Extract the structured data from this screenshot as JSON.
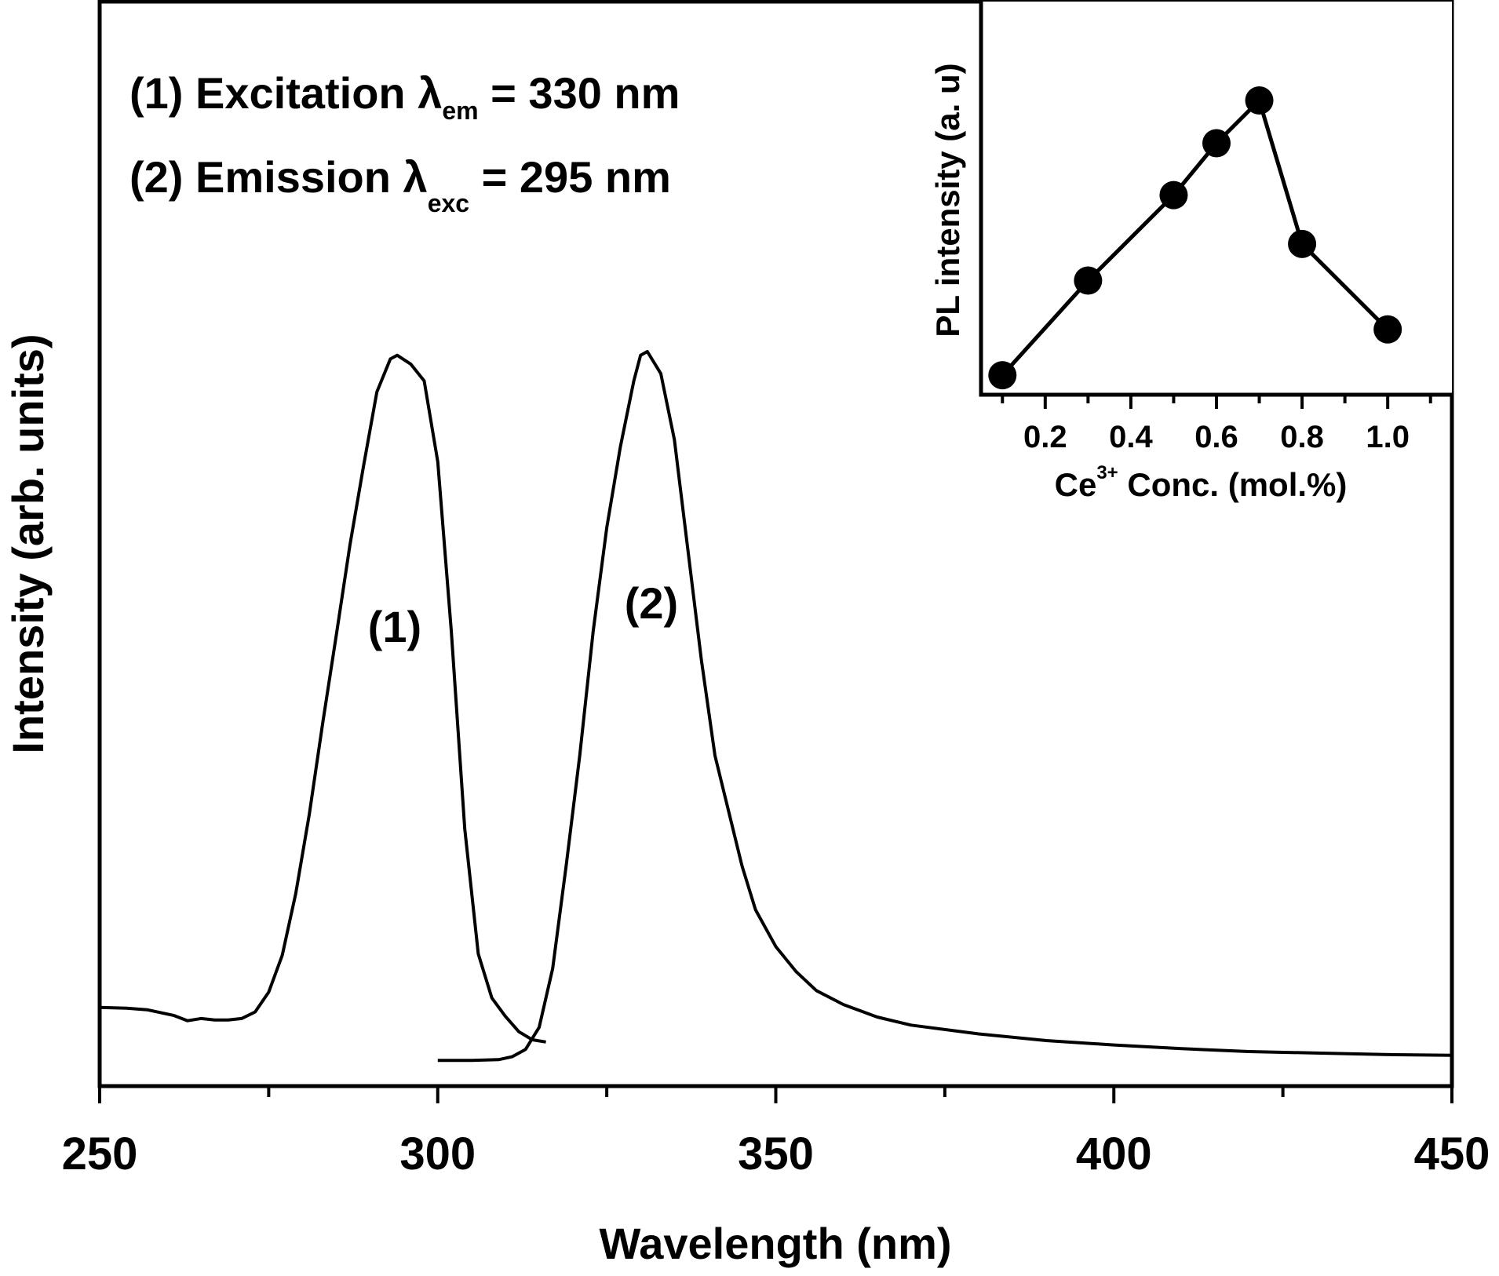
{
  "chart_data": [
    {
      "type": "line",
      "title": "",
      "xlabel": "Wavelength (nm)",
      "ylabel": "Intensity (arb. units)",
      "xlim": [
        250,
        450
      ],
      "ylim": [
        0,
        1.0
      ],
      "xticks": [
        250,
        300,
        350,
        400,
        450
      ],
      "xtick_labels": [
        "250",
        "300",
        "350",
        "400",
        "450"
      ],
      "y_ticks_shown": false,
      "legend": [
        {
          "label": "(1) Excitation",
          "lambda_symbol": "λ",
          "lambda_sub": "em",
          "value": "= 330 nm"
        },
        {
          "label": "(2) Emission",
          "lambda_symbol": "λ",
          "lambda_sub": "exc",
          "value": "= 295 nm"
        }
      ],
      "annotations": [
        {
          "text": "(1)",
          "series": "excitation",
          "x": 294,
          "y": 0.64
        },
        {
          "text": "(2)",
          "series": "emission",
          "x": 331,
          "y": 0.65
        }
      ],
      "series": [
        {
          "name": "excitation",
          "x": [
            250,
            254,
            257,
            261,
            263,
            265,
            267,
            269,
            271,
            273,
            275,
            277,
            279,
            281,
            283,
            285,
            287,
            289,
            291,
            293,
            294,
            296,
            298,
            300,
            302,
            304,
            306,
            308,
            310,
            312,
            314,
            316
          ],
          "y": [
            0.107,
            0.106,
            0.104,
            0.096,
            0.089,
            0.092,
            0.09,
            0.09,
            0.092,
            0.101,
            0.128,
            0.178,
            0.262,
            0.37,
            0.495,
            0.614,
            0.736,
            0.843,
            0.945,
            0.99,
            0.995,
            0.983,
            0.96,
            0.85,
            0.62,
            0.35,
            0.18,
            0.12,
            0.095,
            0.074,
            0.063,
            0.06
          ]
        },
        {
          "name": "emission",
          "x": [
            300,
            305,
            309,
            311,
            313,
            315,
            317,
            319,
            321,
            323,
            325,
            327,
            329,
            330,
            331,
            333,
            335,
            337,
            339,
            341,
            343,
            345,
            347,
            350,
            353,
            356,
            360,
            365,
            370,
            380,
            390,
            400,
            410,
            420,
            430,
            440,
            450
          ],
          "y": [
            0.035,
            0.035,
            0.036,
            0.04,
            0.05,
            0.08,
            0.16,
            0.3,
            0.45,
            0.62,
            0.76,
            0.87,
            0.96,
            0.995,
            1.0,
            0.97,
            0.88,
            0.73,
            0.58,
            0.45,
            0.375,
            0.3,
            0.24,
            0.19,
            0.156,
            0.13,
            0.111,
            0.094,
            0.083,
            0.071,
            0.062,
            0.056,
            0.051,
            0.047,
            0.045,
            0.043,
            0.042
          ]
        }
      ]
    },
    {
      "type": "line",
      "title": "",
      "xlabel": "Conc. (mol.%)",
      "xlabel_prefix": "Ce",
      "xlabel_sup": "3+",
      "ylabel": "PL intensity (a. u)",
      "xlim": [
        0.05,
        1.15
      ],
      "ylim": [
        0,
        1.0
      ],
      "xticks": [
        0.2,
        0.4,
        0.6,
        0.8,
        1.0
      ],
      "xtick_labels": [
        "0.2",
        "0.4",
        "0.6",
        "0.8",
        "1.0"
      ],
      "markers": "filled-circle",
      "series": [
        {
          "name": "PL intensity",
          "x": [
            0.1,
            0.3,
            0.5,
            0.6,
            0.7,
            0.8,
            1.0
          ],
          "y": [
            0.1,
            0.41,
            0.69,
            0.86,
            1.0,
            0.53,
            0.25
          ]
        }
      ]
    }
  ]
}
